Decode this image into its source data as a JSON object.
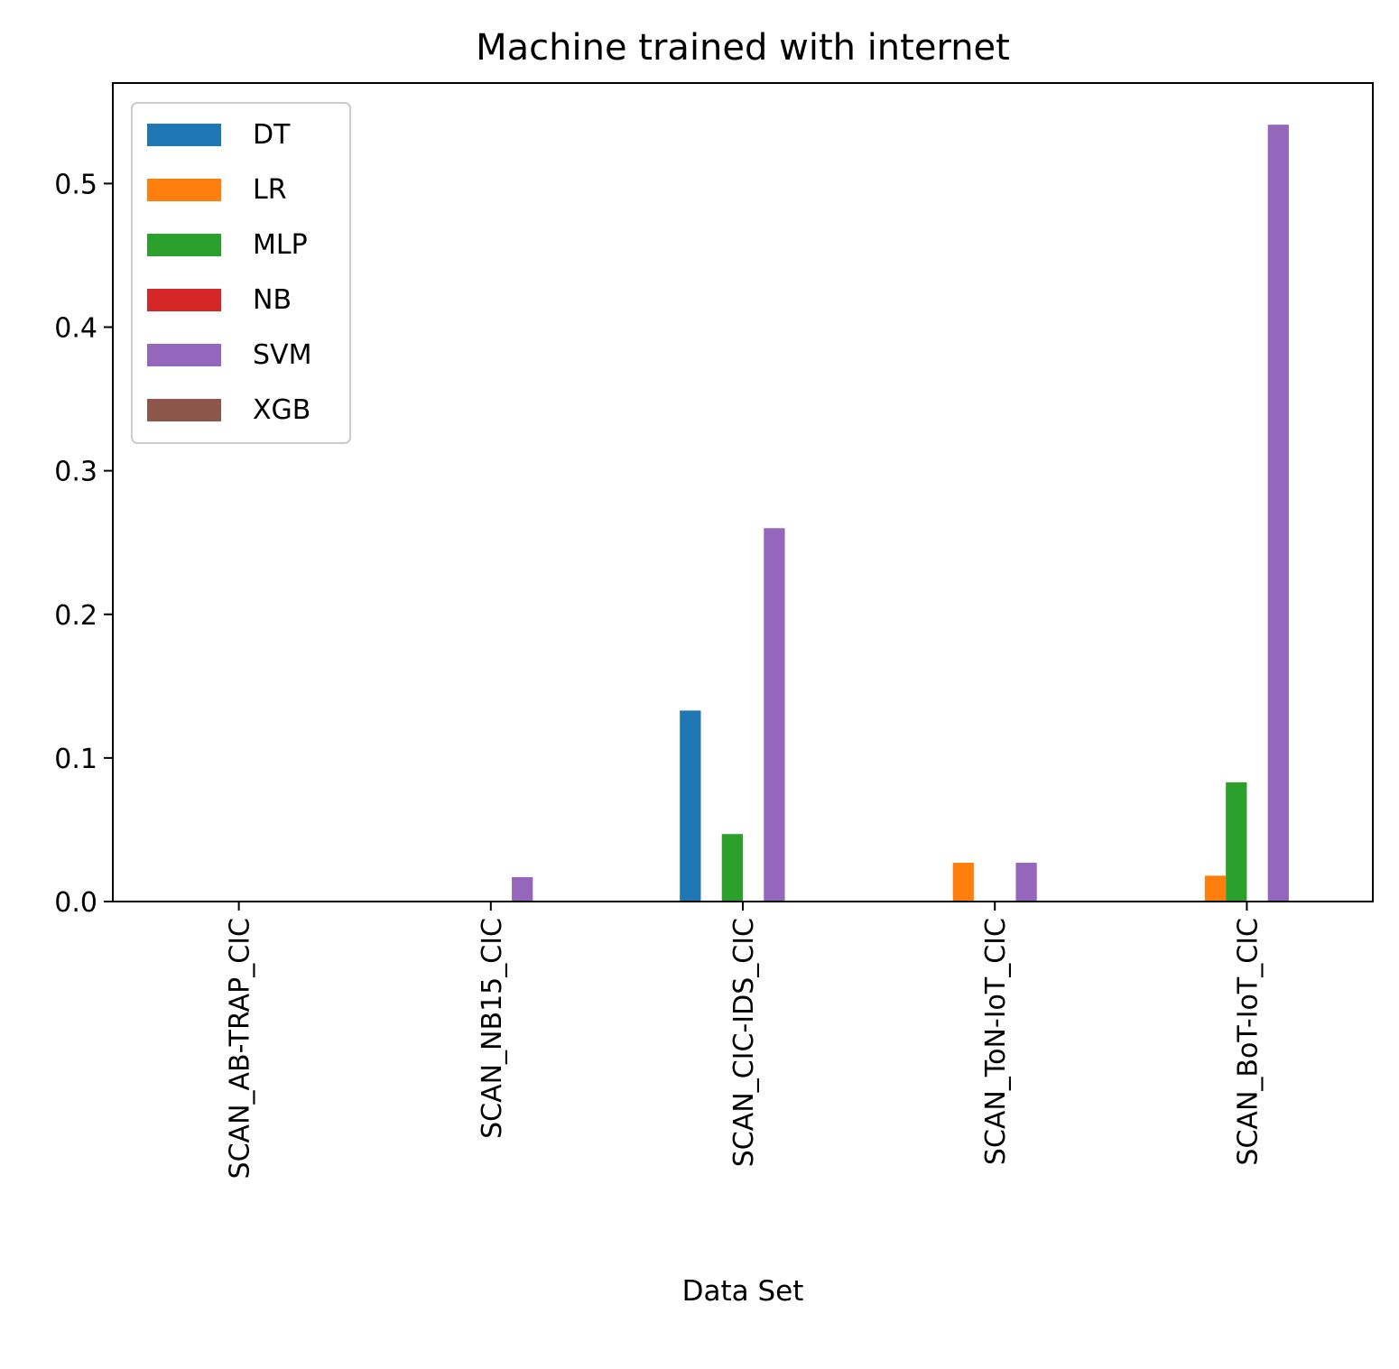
{
  "chart_data": {
    "type": "bar",
    "title": "Machine trained with internet",
    "xlabel": "Data Set",
    "ylabel": "",
    "ylim": [
      0,
      0.57
    ],
    "yticks": [
      0.0,
      0.1,
      0.2,
      0.3,
      0.4,
      0.5
    ],
    "ytick_labels": [
      "0.0",
      "0.1",
      "0.2",
      "0.3",
      "0.4",
      "0.5"
    ],
    "grid": false,
    "legend_position": "top-left",
    "categories": [
      "SCAN_AB-TRAP_CIC",
      "SCAN_NB15_CIC",
      "SCAN_CIC-IDS_CIC",
      "SCAN_ToN-IoT_CIC",
      "SCAN_BoT-IoT_CIC"
    ],
    "series": [
      {
        "name": "DT",
        "color": "#1f77b4",
        "values": [
          0,
          0,
          0.133,
          0,
          0
        ]
      },
      {
        "name": "LR",
        "color": "#ff7f0e",
        "values": [
          0,
          0,
          0,
          0.027,
          0.018
        ]
      },
      {
        "name": "MLP",
        "color": "#2ca02c",
        "values": [
          0,
          0,
          0.047,
          0,
          0.083
        ]
      },
      {
        "name": "NB",
        "color": "#d62728",
        "values": [
          0,
          0,
          0,
          0,
          0
        ]
      },
      {
        "name": "SVM",
        "color": "#9467bd",
        "values": [
          0,
          0.017,
          0.26,
          0.027,
          0.541
        ]
      },
      {
        "name": "XGB",
        "color": "#8c564b",
        "values": [
          0,
          0,
          0,
          0,
          0
        ]
      }
    ]
  }
}
